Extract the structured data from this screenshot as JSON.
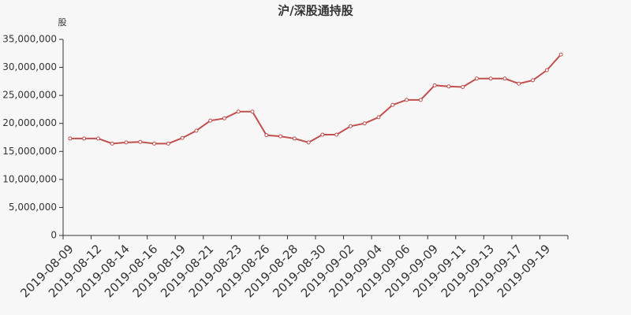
{
  "chart_data": {
    "type": "line",
    "title": "沪/深股通持股",
    "y_label": "股",
    "categories": [
      "2019-08-09",
      null,
      "2019-08-12",
      null,
      "2019-08-14",
      null,
      "2019-08-16",
      null,
      "2019-08-19",
      null,
      "2019-08-21",
      null,
      "2019-08-23",
      null,
      "2019-08-26",
      null,
      "2019-08-28",
      null,
      "2019-08-30",
      null,
      "2019-09-02",
      null,
      "2019-09-04",
      null,
      "2019-09-06",
      null,
      "2019-09-09",
      null,
      "2019-09-11",
      null,
      "2019-09-13",
      null,
      "2019-09-17",
      null,
      "2019-09-19",
      null
    ],
    "series": [
      {
        "color": "#c0504d",
        "values": [
          17300000,
          17300000,
          17300000,
          16400000,
          16600000,
          16700000,
          16400000,
          16400000,
          17400000,
          18700000,
          20500000,
          20900000,
          22100000,
          22100000,
          17900000,
          17700000,
          17300000,
          16600000,
          18000000,
          18000000,
          19500000,
          20000000,
          21100000,
          23300000,
          24200000,
          24200000,
          26800000,
          26600000,
          26500000,
          28000000,
          28000000,
          28000000,
          27100000,
          27700000,
          29500000,
          32300000
        ]
      }
    ],
    "ylim": [
      0,
      35000000
    ],
    "yticks": [
      0,
      {
        "value": 5000000,
        "label": "5,000,000"
      },
      {
        "value": 10000000,
        "label": "10,000,000"
      },
      {
        "value": 15000000,
        "label": "15,000,000"
      },
      {
        "value": 20000000,
        "label": "20,000,000"
      },
      {
        "value": 25000000,
        "label": "25,000,000"
      },
      {
        "value": 30000000,
        "label": "30,000,000"
      },
      {
        "value": 35000000,
        "label": "35,000,000"
      }
    ],
    "grid": false
  }
}
